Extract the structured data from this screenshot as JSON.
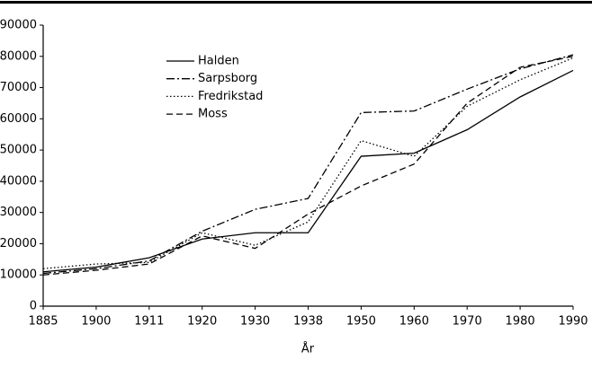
{
  "chart_data": {
    "type": "line",
    "xlabel": "År",
    "categories": [
      "1885",
      "1900",
      "1911",
      "1920",
      "1930",
      "1938",
      "1950",
      "1960",
      "1970",
      "1980",
      "1990"
    ],
    "series": [
      {
        "name": "Halden",
        "color": "#000000",
        "style": "solid",
        "values": [
          11000,
          12500,
          15500,
          21500,
          23500,
          23500,
          48000,
          49000,
          56500,
          67000,
          75500
        ]
      },
      {
        "name": "Sarpsborg",
        "color": "#000000",
        "style": "dashdot",
        "values": [
          10500,
          12000,
          14500,
          24000,
          31000,
          34500,
          62000,
          62500,
          69500,
          76000,
          80500
        ]
      },
      {
        "name": "Fredrikstad",
        "color": "#000000",
        "style": "dotted",
        "values": [
          12000,
          13500,
          14000,
          23500,
          19500,
          27000,
          53000,
          48000,
          64000,
          72500,
          79500
        ]
      },
      {
        "name": "Moss",
        "color": "#000000",
        "style": "dashed",
        "values": [
          10000,
          11500,
          13500,
          22500,
          18500,
          29500,
          38500,
          45500,
          65000,
          76500,
          80000
        ]
      }
    ],
    "ylim": [
      0,
      90000
    ],
    "yticks": [
      0,
      10000,
      20000,
      30000,
      40000,
      50000,
      60000,
      70000,
      80000,
      90000
    ],
    "legend": "upper left"
  }
}
